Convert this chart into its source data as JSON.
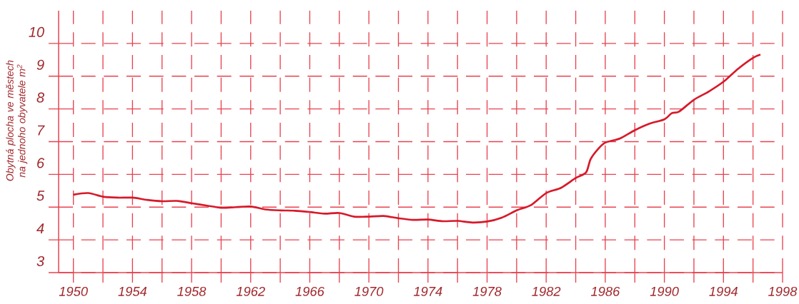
{
  "chart_data": {
    "type": "line",
    "ylabel": "Obytná plocha ve městech na jednoho obyvatele m$^{2}$",
    "x": [
      1950,
      1951,
      1952,
      1953,
      1954,
      1955,
      1956,
      1957,
      1958,
      1959,
      1960,
      1961,
      1962,
      1963,
      1964,
      1965,
      1966,
      1967,
      1968,
      1969,
      1970,
      1971,
      1972,
      1973,
      1974,
      1975,
      1976,
      1977,
      1978,
      1979,
      1980,
      1981,
      1982,
      1983,
      1984,
      1984.7,
      1985,
      1985.5,
      1986,
      1987,
      1988,
      1989,
      1990,
      1990.5,
      1991,
      1992,
      1993,
      1994,
      1995,
      1996,
      1996.5
    ],
    "series": [
      {
        "color": "#d7192a",
        "values": [
          5.38,
          5.43,
          5.32,
          5.29,
          5.29,
          5.22,
          5.18,
          5.19,
          5.12,
          5.05,
          4.98,
          5.0,
          5.02,
          4.93,
          4.9,
          4.89,
          4.85,
          4.8,
          4.82,
          4.71,
          4.71,
          4.73,
          4.66,
          4.61,
          4.62,
          4.57,
          4.58,
          4.53,
          4.56,
          4.68,
          4.9,
          5.07,
          5.43,
          5.59,
          5.89,
          6.06,
          6.46,
          6.77,
          6.97,
          7.1,
          7.35,
          7.55,
          7.68,
          7.87,
          7.92,
          8.28,
          8.53,
          8.83,
          9.23,
          9.56,
          9.66
        ]
      }
    ],
    "xlim": [
      1949,
      1998
    ],
    "ylim": [
      3,
      11
    ],
    "xticks": [
      1950,
      {
        "value": 1952,
        "label": null
      },
      1954,
      {
        "value": 1956,
        "label": null
      },
      1958,
      {
        "value": 1960,
        "label": null
      },
      1962,
      {
        "value": 1964,
        "label": null
      },
      1966,
      {
        "value": 1968,
        "label": null
      },
      1970,
      {
        "value": 1972,
        "label": null
      },
      1974,
      {
        "value": 1976,
        "label": null
      },
      1978,
      {
        "value": 1980,
        "label": null
      },
      1982,
      {
        "value": 1984,
        "label": null
      },
      1986,
      {
        "value": 1988,
        "label": null
      },
      1990,
      {
        "value": 1992,
        "label": null
      },
      1994,
      {
        "value": 1996,
        "label": null
      },
      1998
    ],
    "yticks": [
      3,
      4,
      5,
      6,
      7,
      8,
      9,
      10
    ],
    "grid": true,
    "line_style": "solid",
    "marker": "none"
  }
}
